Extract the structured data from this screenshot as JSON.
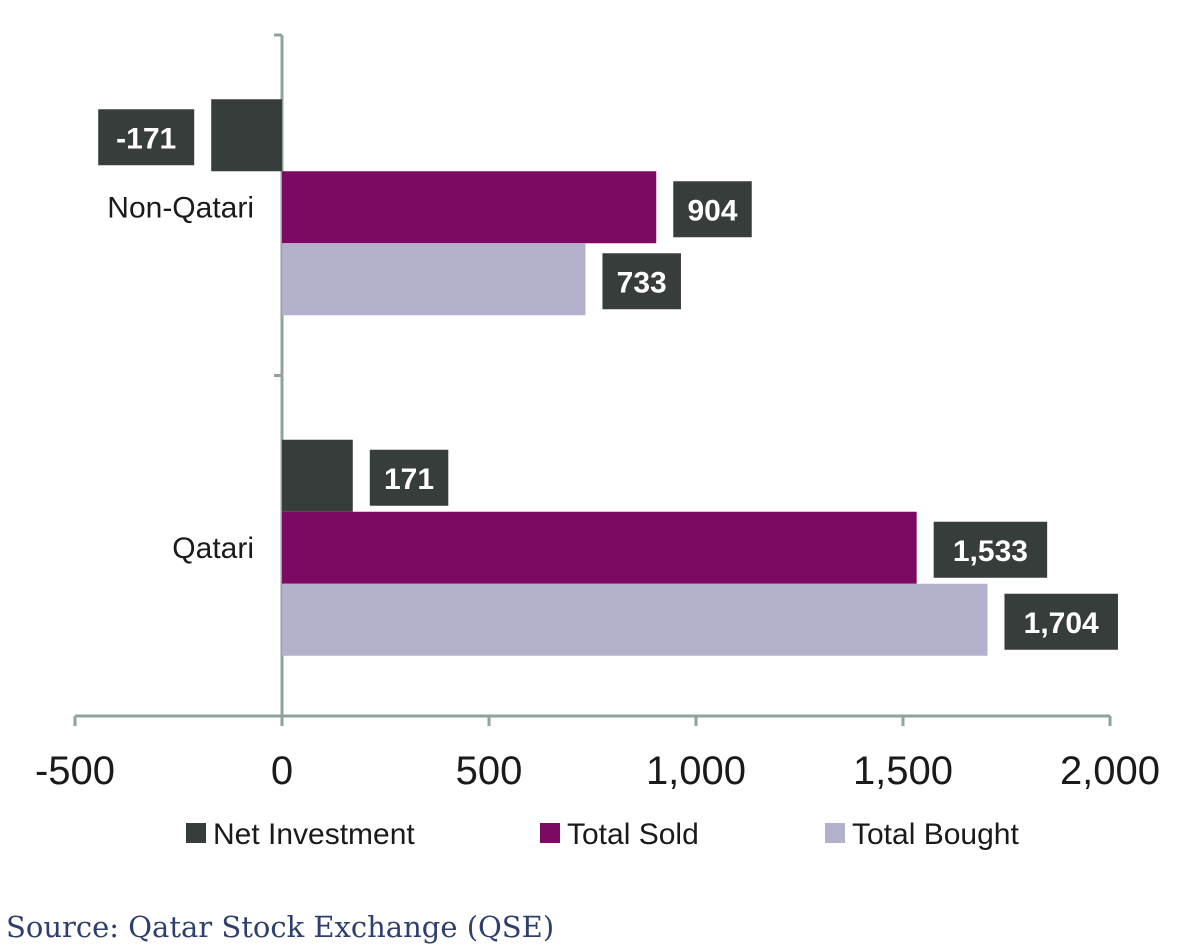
{
  "chart_data": {
    "type": "bar",
    "orientation": "horizontal",
    "categories": [
      "Non-Qatari",
      "Qatari"
    ],
    "series": [
      {
        "name": "Net Investment",
        "values": [
          -171,
          171
        ],
        "labels": [
          "-171",
          "171"
        ],
        "color": "#373d3b"
      },
      {
        "name": "Total Sold",
        "values": [
          904,
          1533
        ],
        "labels": [
          "904",
          "1,533"
        ],
        "color": "#7c0a63"
      },
      {
        "name": "Total Bought",
        "values": [
          733,
          1704
        ],
        "labels": [
          "733",
          "1,704"
        ],
        "color": "#b3b0cc"
      }
    ],
    "xlim": [
      -500,
      2000
    ],
    "xticks": [
      -500,
      0,
      500,
      1000,
      1500,
      2000
    ],
    "xtick_labels": [
      "-500",
      "0",
      "500",
      "1,000",
      "1,500",
      "2,000"
    ],
    "label_box_color": "#373d3b",
    "grid": false,
    "legend_position": "bottom"
  },
  "source": "Source: Qatar Stock Exchange (QSE)"
}
